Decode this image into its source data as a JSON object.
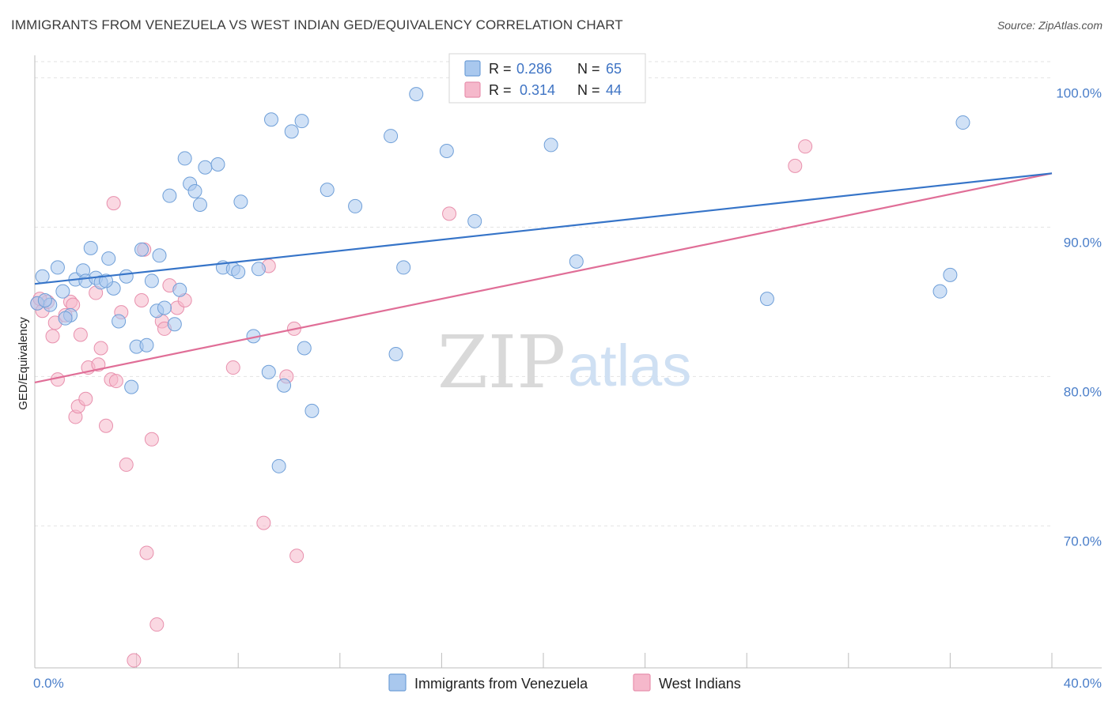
{
  "title": "IMMIGRANTS FROM VENEZUELA VS WEST INDIAN GED/EQUIVALENCY CORRELATION CHART",
  "source": "Source: ZipAtlas.com",
  "watermark": {
    "zip": "ZIP",
    "atlas": "atlas"
  },
  "legend": {
    "rows": [
      {
        "r_label": "R =",
        "r_value": "0.286",
        "n_label": "N =",
        "n_value": "65"
      },
      {
        "r_label": "R =",
        "r_value": "0.314",
        "n_label": "N =",
        "n_value": "44"
      }
    ]
  },
  "colors": {
    "blue_fill": "#a9c8ee",
    "blue_stroke": "#6f9fd8",
    "blue_line": "#3674c8",
    "pink_fill": "#f5b8cb",
    "pink_stroke": "#e890ad",
    "pink_line": "#e06e97",
    "grid": "#e2e2e2",
    "axis_text": "#4a7ec9"
  },
  "chart_data": {
    "type": "scatter",
    "title": "IMMIGRANTS FROM VENEZUELA VS WEST INDIAN GED/EQUIVALENCY CORRELATION CHART",
    "xlabel": "",
    "ylabel": "GED/Equivalency",
    "xlim": [
      0,
      40
    ],
    "ylim": [
      60.5,
      101.5
    ],
    "x_tick_labels": [
      "0.0%",
      "40.0%"
    ],
    "y_ticks": [
      70,
      80,
      90,
      100
    ],
    "y_tick_labels": [
      "70.0%",
      "80.0%",
      "90.0%",
      "100.0%"
    ],
    "grid": true,
    "legend_position": "top-center",
    "series": [
      {
        "name": "Immigrants from Venezuela",
        "color": "#a9c8ee",
        "R": 0.286,
        "N": 65,
        "trend": {
          "x": [
            0,
            40
          ],
          "y": [
            86.2,
            93.6
          ]
        },
        "points": [
          [
            0.3,
            86.7
          ],
          [
            0.6,
            84.8
          ],
          [
            0.9,
            87.3
          ],
          [
            1.1,
            85.7
          ],
          [
            1.4,
            84.1
          ],
          [
            1.6,
            86.5
          ],
          [
            1.9,
            87.1
          ],
          [
            2.0,
            86.4
          ],
          [
            2.2,
            88.6
          ],
          [
            2.4,
            86.6
          ],
          [
            2.6,
            86.3
          ],
          [
            2.9,
            87.9
          ],
          [
            3.1,
            85.9
          ],
          [
            3.3,
            83.7
          ],
          [
            3.6,
            86.7
          ],
          [
            3.8,
            79.3
          ],
          [
            4.0,
            82.0
          ],
          [
            4.2,
            88.5
          ],
          [
            4.4,
            82.1
          ],
          [
            4.6,
            86.4
          ],
          [
            4.8,
            84.4
          ],
          [
            4.9,
            88.1
          ],
          [
            5.1,
            84.6
          ],
          [
            5.3,
            92.1
          ],
          [
            5.5,
            83.5
          ],
          [
            5.7,
            85.8
          ],
          [
            5.9,
            94.6
          ],
          [
            6.1,
            92.9
          ],
          [
            6.3,
            92.4
          ],
          [
            6.5,
            91.5
          ],
          [
            6.7,
            94.0
          ],
          [
            7.2,
            94.2
          ],
          [
            7.4,
            87.3
          ],
          [
            7.8,
            87.2
          ],
          [
            8.0,
            87.0
          ],
          [
            8.1,
            91.7
          ],
          [
            8.6,
            82.7
          ],
          [
            8.8,
            87.2
          ],
          [
            9.2,
            80.3
          ],
          [
            9.3,
            97.2
          ],
          [
            9.6,
            74.0
          ],
          [
            9.8,
            79.4
          ],
          [
            10.1,
            96.4
          ],
          [
            10.5,
            97.1
          ],
          [
            10.6,
            81.9
          ],
          [
            10.9,
            77.7
          ],
          [
            11.5,
            92.5
          ],
          [
            12.6,
            91.4
          ],
          [
            14.0,
            96.1
          ],
          [
            14.2,
            81.5
          ],
          [
            14.5,
            87.3
          ],
          [
            15.0,
            98.9
          ],
          [
            16.2,
            95.1
          ],
          [
            17.3,
            90.4
          ],
          [
            20.3,
            95.5
          ],
          [
            21.3,
            87.7
          ],
          [
            22.0,
            100.0
          ],
          [
            28.8,
            85.2
          ],
          [
            35.6,
            85.7
          ],
          [
            36.0,
            86.8
          ],
          [
            36.5,
            97.0
          ],
          [
            0.1,
            84.9
          ],
          [
            0.4,
            85.1
          ],
          [
            1.2,
            83.9
          ],
          [
            2.8,
            86.4
          ]
        ]
      },
      {
        "name": "West Indians",
        "color": "#f5b8cb",
        "R": 0.314,
        "N": 44,
        "trend": {
          "x": [
            0,
            40
          ],
          "y": [
            79.6,
            93.6
          ]
        },
        "points": [
          [
            0.1,
            84.9
          ],
          [
            0.3,
            84.4
          ],
          [
            0.5,
            85.0
          ],
          [
            0.7,
            82.7
          ],
          [
            0.8,
            83.6
          ],
          [
            0.9,
            79.8
          ],
          [
            1.2,
            84.1
          ],
          [
            1.4,
            85.0
          ],
          [
            1.5,
            84.8
          ],
          [
            1.6,
            77.3
          ],
          [
            1.7,
            78.0
          ],
          [
            1.8,
            82.8
          ],
          [
            2.0,
            78.5
          ],
          [
            2.1,
            80.6
          ],
          [
            2.4,
            85.6
          ],
          [
            2.5,
            80.8
          ],
          [
            2.6,
            81.9
          ],
          [
            2.8,
            76.7
          ],
          [
            3.0,
            79.8
          ],
          [
            3.1,
            91.6
          ],
          [
            3.2,
            79.7
          ],
          [
            3.4,
            84.3
          ],
          [
            3.6,
            74.1
          ],
          [
            3.9,
            61.0
          ],
          [
            4.2,
            85.1
          ],
          [
            4.3,
            88.5
          ],
          [
            4.4,
            68.2
          ],
          [
            4.6,
            75.8
          ],
          [
            4.8,
            63.4
          ],
          [
            5.0,
            83.7
          ],
          [
            5.1,
            83.2
          ],
          [
            5.3,
            86.1
          ],
          [
            5.6,
            84.6
          ],
          [
            5.9,
            85.1
          ],
          [
            7.8,
            80.6
          ],
          [
            9.0,
            70.2
          ],
          [
            9.2,
            87.4
          ],
          [
            9.9,
            80.0
          ],
          [
            10.2,
            83.2
          ],
          [
            10.3,
            68.0
          ],
          [
            16.3,
            90.9
          ],
          [
            29.9,
            94.1
          ],
          [
            30.3,
            95.4
          ],
          [
            0.2,
            85.2
          ]
        ]
      }
    ]
  }
}
